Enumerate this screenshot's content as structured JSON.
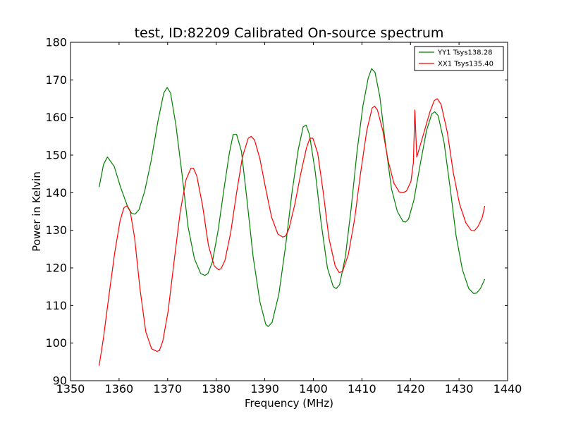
{
  "chart_data": {
    "type": "line",
    "title": "test, ID:82209 Calibrated On-source spectrum",
    "xlabel": "Frequency (MHz)",
    "ylabel": "Power in Kelvin",
    "xlim": [
      1350,
      1440
    ],
    "ylim": [
      90,
      180
    ],
    "xticks": [
      1350,
      1360,
      1370,
      1380,
      1390,
      1400,
      1410,
      1420,
      1430,
      1440
    ],
    "yticks": [
      90,
      100,
      110,
      120,
      130,
      140,
      150,
      160,
      170,
      180
    ],
    "grid": false,
    "legend_position": "top-right",
    "series": [
      {
        "name": "YY1 Tsys138.28",
        "color": "#008000",
        "x": [
          1355.9,
          1356.8,
          1357.6,
          1359.0,
          1360.3,
          1361.7,
          1362.6,
          1363.3,
          1364.1,
          1365.3,
          1366.6,
          1368.0,
          1369.2,
          1369.9,
          1370.6,
          1371.7,
          1373.0,
          1374.2,
          1375.5,
          1376.8,
          1377.7,
          1378.3,
          1379.2,
          1380.4,
          1381.6,
          1382.7,
          1383.5,
          1384.2,
          1385.2,
          1386.3,
          1387.6,
          1389.0,
          1390.2,
          1390.7,
          1391.5,
          1392.9,
          1394.3,
          1395.6,
          1396.9,
          1397.9,
          1398.5,
          1399.2,
          1400.4,
          1401.6,
          1402.9,
          1404.1,
          1404.7,
          1405.4,
          1406.6,
          1407.8,
          1409.0,
          1410.2,
          1411.3,
          1412.0,
          1412.7,
          1413.7,
          1414.8,
          1416.1,
          1417.3,
          1418.5,
          1419.0,
          1419.6,
          1420.7,
          1422.0,
          1423.3,
          1424.4,
          1425.0,
          1425.7,
          1426.9,
          1428.2,
          1429.4,
          1430.7,
          1432.0,
          1433.0,
          1433.6,
          1434.4,
          1435.3
        ],
        "values": [
          141.5,
          147.5,
          149.5,
          147.0,
          141.5,
          136.5,
          134.5,
          134.3,
          135.5,
          140.5,
          148.5,
          159.0,
          166.5,
          168.0,
          166.5,
          158.0,
          144.5,
          131.0,
          122.5,
          118.5,
          118.0,
          118.5,
          121.5,
          130.0,
          141.0,
          150.5,
          155.5,
          155.5,
          151.0,
          138.5,
          123.0,
          111.0,
          105.0,
          104.4,
          105.5,
          113.0,
          126.0,
          140.0,
          151.5,
          157.5,
          158.0,
          155.5,
          145.5,
          132.0,
          120.0,
          115.0,
          114.5,
          115.5,
          123.0,
          136.0,
          151.0,
          163.0,
          170.5,
          173.0,
          172.0,
          165.5,
          153.5,
          141.0,
          135.0,
          132.3,
          132.2,
          133.0,
          138.0,
          147.5,
          156.5,
          161.0,
          161.5,
          160.5,
          153.5,
          141.0,
          128.5,
          119.5,
          114.5,
          113.2,
          113.3,
          114.5,
          117.0
        ]
      },
      {
        "name": "XX1 Tsys135.40",
        "color": "#ff0000",
        "x": [
          1355.9,
          1356.8,
          1357.9,
          1359.1,
          1360.2,
          1361.0,
          1361.6,
          1362.3,
          1363.2,
          1364.3,
          1365.5,
          1366.7,
          1367.8,
          1368.3,
          1369.0,
          1370.1,
          1371.4,
          1372.6,
          1373.8,
          1374.8,
          1375.3,
          1376.0,
          1377.2,
          1378.4,
          1379.6,
          1380.5,
          1381.0,
          1381.8,
          1383.0,
          1384.2,
          1385.4,
          1386.6,
          1387.2,
          1387.9,
          1389.0,
          1390.2,
          1391.4,
          1392.7,
          1393.7,
          1394.3,
          1395.0,
          1396.2,
          1397.4,
          1398.6,
          1399.3,
          1399.9,
          1400.9,
          1402.0,
          1403.2,
          1404.5,
          1405.3,
          1406.0,
          1407.2,
          1408.5,
          1409.7,
          1411.0,
          1412.1,
          1412.6,
          1413.2,
          1414.3,
          1415.4,
          1416.6,
          1417.7,
          1418.5,
          1419.2,
          1420.1,
          1420.6,
          1420.9,
          1421.3,
          1422.1,
          1423.0,
          1424.0,
          1424.9,
          1425.5,
          1426.3,
          1427.6,
          1428.8,
          1430.1,
          1431.4,
          1432.5,
          1433.1,
          1433.9,
          1434.8,
          1435.3
        ],
        "values": [
          94.0,
          101.5,
          112.5,
          124.0,
          132.5,
          136.0,
          136.5,
          135.0,
          128.0,
          114.5,
          103.0,
          98.5,
          97.8,
          98.0,
          100.5,
          108.5,
          122.5,
          135.0,
          143.5,
          146.5,
          146.5,
          144.5,
          136.5,
          126.0,
          120.5,
          119.5,
          119.8,
          122.0,
          129.5,
          140.0,
          149.5,
          154.5,
          155.0,
          154.0,
          149.0,
          141.0,
          133.5,
          129.0,
          128.2,
          128.5,
          130.5,
          137.0,
          145.0,
          152.0,
          154.5,
          154.5,
          150.5,
          140.5,
          128.0,
          120.5,
          118.8,
          119.0,
          123.5,
          133.0,
          145.0,
          156.5,
          162.5,
          163.0,
          162.0,
          156.5,
          148.5,
          142.5,
          140.2,
          140.0,
          140.5,
          143.0,
          148.0,
          162.0,
          149.5,
          153.0,
          157.0,
          161.5,
          164.5,
          165.0,
          163.5,
          156.0,
          145.5,
          137.0,
          132.0,
          130.0,
          129.8,
          131.0,
          133.5,
          136.5
        ]
      }
    ]
  }
}
